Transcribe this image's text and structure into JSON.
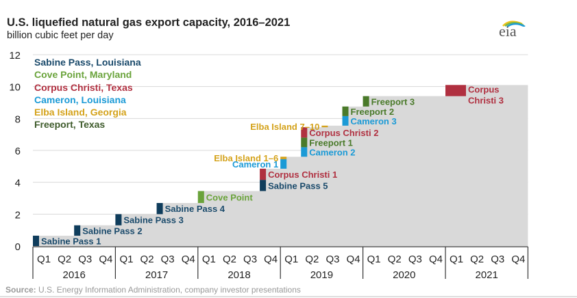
{
  "header": {
    "title": "U.S. liquefied natural gas export capacity, 2016–2021",
    "subtitle": "billion cubic feet per day",
    "logo_text": "eia"
  },
  "legend": [
    {
      "label": "Sabine Pass, Louisiana",
      "color": "#0f3d5c"
    },
    {
      "label": "Cove Point, Maryland",
      "color": "#6aa33b"
    },
    {
      "label": "Corpus Christi, Texas",
      "color": "#b03040"
    },
    {
      "label": "Cameron, Louisiana",
      "color": "#1b9ad6"
    },
    {
      "label": "Elba Island, Georgia",
      "color": "#d4a21a"
    },
    {
      "label": "Freeport, Texas",
      "color": "#4a6b2a"
    }
  ],
  "source": {
    "prefix": "Source:",
    "text": " U.S. Energy Information Administration, company investor presentations"
  },
  "chart_data": {
    "type": "area",
    "title": "U.S. liquefied natural gas export capacity, 2016–2021",
    "ylabel": "billion cubic feet per day",
    "xlabel": "",
    "ylim": [
      0,
      12
    ],
    "yticks": [
      0,
      2,
      4,
      6,
      8,
      10,
      12
    ],
    "grid": true,
    "legend_position": "top-left",
    "years": [
      "2016",
      "2017",
      "2018",
      "2019",
      "2020",
      "2021"
    ],
    "quarters": [
      "Q1",
      "Q2",
      "Q3",
      "Q4"
    ],
    "cumulative_area_color": "#d9d9d9",
    "segments": [
      {
        "label": "Sabine Pass 1",
        "facility": "Sabine Pass",
        "quarter_index": 0,
        "from": 0.0,
        "to": 0.65,
        "color": "#0f3d5c",
        "label_color": "#1a4a6b",
        "label_side": "right"
      },
      {
        "label": "Sabine Pass 2",
        "facility": "Sabine Pass",
        "quarter_index": 2,
        "from": 0.65,
        "to": 1.3,
        "color": "#0f3d5c",
        "label_color": "#1a4a6b",
        "label_side": "right"
      },
      {
        "label": "Sabine Pass 3",
        "facility": "Sabine Pass",
        "quarter_index": 4,
        "from": 1.3,
        "to": 2.0,
        "color": "#0f3d5c",
        "label_color": "#1a4a6b",
        "label_side": "right"
      },
      {
        "label": "Sabine Pass 4",
        "facility": "Sabine Pass",
        "quarter_index": 6,
        "from": 2.0,
        "to": 2.7,
        "color": "#0f3d5c",
        "label_color": "#1a4a6b",
        "label_side": "right"
      },
      {
        "label": "Cove Point",
        "facility": "Cove Point",
        "quarter_index": 8,
        "from": 2.7,
        "to": 3.45,
        "color": "#6aa33b",
        "label_color": "#6aa33b",
        "label_side": "right"
      },
      {
        "label": "Sabine Pass 5",
        "facility": "Sabine Pass",
        "quarter_index": 11,
        "from": 3.45,
        "to": 4.15,
        "color": "#0f3d5c",
        "label_color": "#1a4a6b",
        "label_side": "right"
      },
      {
        "label": "Corpus Christi 1",
        "facility": "Corpus Christi",
        "quarter_index": 11,
        "from": 4.15,
        "to": 4.85,
        "color": "#b03040",
        "label_color": "#b03040",
        "label_side": "right"
      },
      {
        "label": "Cameron 1",
        "facility": "Cameron",
        "quarter_index": 12,
        "from": 4.85,
        "to": 5.45,
        "color": "#1b9ad6",
        "label_color": "#1b9ad6",
        "label_side": "left"
      },
      {
        "label": "Elba Island 1–6",
        "facility": "Elba Island",
        "quarter_index": 12,
        "from": 5.45,
        "to": 5.6,
        "color": "#d4a21a",
        "label_color": "#d4a21a",
        "label_side": "left"
      },
      {
        "label": "Cameron 2",
        "facility": "Cameron",
        "quarter_index": 13,
        "from": 5.6,
        "to": 6.2,
        "color": "#1b9ad6",
        "label_color": "#1b9ad6",
        "label_side": "right"
      },
      {
        "label": "Freeport 1",
        "facility": "Freeport",
        "quarter_index": 13,
        "from": 6.2,
        "to": 6.8,
        "color": "#4a7a2a",
        "label_color": "#4a7a2a",
        "label_side": "right"
      },
      {
        "label": "Corpus Christi 2",
        "facility": "Corpus Christi",
        "quarter_index": 13,
        "from": 6.8,
        "to": 7.45,
        "color": "#b03040",
        "label_color": "#b03040",
        "label_side": "right"
      },
      {
        "label": "Elba Island 7–10",
        "facility": "Elba Island",
        "quarter_index": 14,
        "from": 7.45,
        "to": 7.55,
        "color": "#d4a21a",
        "label_color": "#d4a21a",
        "label_side": "left"
      },
      {
        "label": "Cameron 3",
        "facility": "Cameron",
        "quarter_index": 15,
        "from": 7.55,
        "to": 8.15,
        "color": "#1b9ad6",
        "label_color": "#1b9ad6",
        "label_side": "right"
      },
      {
        "label": "Freeport 2",
        "facility": "Freeport",
        "quarter_index": 15,
        "from": 8.15,
        "to": 8.75,
        "color": "#4a7a2a",
        "label_color": "#4a7a2a",
        "label_side": "right"
      },
      {
        "label": "Freeport 3",
        "facility": "Freeport",
        "quarter_index": 16,
        "from": 8.75,
        "to": 9.4,
        "color": "#4a7a2a",
        "label_color": "#4a7a2a",
        "label_side": "right"
      },
      {
        "label": "Corpus Christi 3",
        "facility": "Corpus Christi",
        "quarter_index": 20,
        "from": 9.4,
        "to": 10.1,
        "color": "#b03040",
        "label_color": "#b03040",
        "label_side": "right",
        "wide": true
      }
    ]
  }
}
